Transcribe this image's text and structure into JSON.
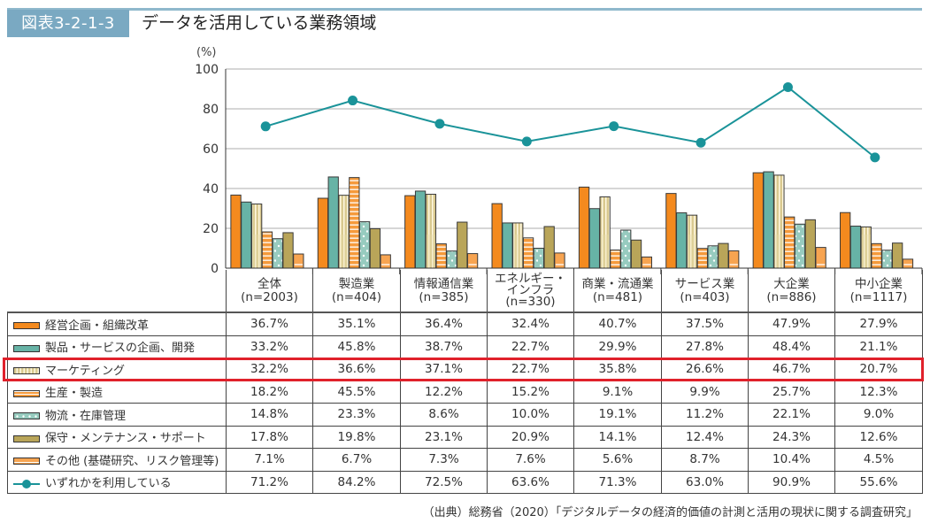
{
  "figure": {
    "number": "図表3-2-1-3",
    "title": "データを活用している業務領域",
    "unit": "(%)",
    "source": "（出典）総務省（2020）「デジタルデータの経済的価値の計測と活用の現状に関する調査研究」"
  },
  "colors": {
    "keiei": "#f48a1e",
    "seihin": "#67b3a6",
    "marketing": "#d9c98f",
    "seisan": "#f59a3b",
    "butsuryu": "#97cbbf",
    "hoshu": "#b9a559",
    "other": "#f7a451",
    "line": "#1a9399",
    "highlight": "#e0212b",
    "badge": "#7aa9c2"
  },
  "chart_data": {
    "type": "bar",
    "title": "データを活用している業務領域",
    "ylabel": "(%)",
    "xlabel": "",
    "ylim": [
      0,
      100
    ],
    "yticks": [
      0,
      20,
      40,
      60,
      80,
      100
    ],
    "grid": true,
    "categories": [
      {
        "name": "全体",
        "n": "(n=2003)"
      },
      {
        "name": "製造業",
        "n": "(n=404)"
      },
      {
        "name": "情報通信業",
        "n": "(n=385)"
      },
      {
        "name": "エネルギー・インフラ",
        "n": "(n=330)",
        "lines": [
          "エネルギー・",
          "インフラ"
        ]
      },
      {
        "name": "商業・流通業",
        "n": "(n=481)"
      },
      {
        "name": "サービス業",
        "n": "(n=403)"
      },
      {
        "name": "大企業",
        "n": "(n=886)"
      },
      {
        "name": "中小企業",
        "n": "(n=1117)"
      }
    ],
    "series": [
      {
        "key": "keiei",
        "name": "経営企画・組織改革",
        "type": "bar",
        "pattern": "solid",
        "values": [
          36.7,
          35.1,
          36.4,
          32.4,
          40.7,
          37.5,
          47.9,
          27.9
        ]
      },
      {
        "key": "seihin",
        "name": "製品・サービスの企画、開発",
        "type": "bar",
        "pattern": "solid",
        "values": [
          33.2,
          45.8,
          38.7,
          22.7,
          29.9,
          27.8,
          48.4,
          21.1
        ]
      },
      {
        "key": "marketing",
        "name": "マーケティング",
        "type": "bar",
        "pattern": "vertical-stripes",
        "values": [
          32.2,
          36.6,
          37.1,
          22.7,
          35.8,
          26.6,
          46.7,
          20.7
        ],
        "highlighted": true
      },
      {
        "key": "seisan",
        "name": "生産・製造",
        "type": "bar",
        "pattern": "horizontal-stripes",
        "values": [
          18.2,
          45.5,
          12.2,
          15.2,
          9.1,
          9.9,
          25.7,
          12.3
        ]
      },
      {
        "key": "butsuryu",
        "name": "物流・在庫管理",
        "type": "bar",
        "pattern": "dots",
        "values": [
          14.8,
          23.3,
          8.6,
          10.0,
          19.1,
          11.2,
          22.1,
          9.0
        ]
      },
      {
        "key": "hoshu",
        "name": "保守・メンテナンス・サポート",
        "type": "bar",
        "pattern": "solid",
        "values": [
          17.8,
          19.8,
          23.1,
          20.9,
          14.1,
          12.4,
          24.3,
          12.6
        ]
      },
      {
        "key": "other",
        "name": "その他 (基礎研究、リスク管理等)",
        "type": "bar",
        "pattern": "bottom-line",
        "values": [
          7.1,
          6.7,
          7.3,
          7.6,
          5.6,
          8.7,
          10.4,
          4.5
        ]
      },
      {
        "key": "line",
        "name": "いずれかを利用している",
        "type": "line",
        "pattern": "line-marker",
        "values": [
          71.2,
          84.2,
          72.5,
          63.6,
          71.3,
          63.0,
          90.9,
          55.6
        ]
      }
    ]
  },
  "table": {
    "rows": [
      {
        "label": "経営企画・組織改革",
        "cells": [
          "36.7%",
          "35.1%",
          "36.4%",
          "32.4%",
          "40.7%",
          "37.5%",
          "47.9%",
          "27.9%"
        ]
      },
      {
        "label": "製品・サービスの企画、開発",
        "cells": [
          "33.2%",
          "45.8%",
          "38.7%",
          "22.7%",
          "29.9%",
          "27.8%",
          "48.4%",
          "21.1%"
        ]
      },
      {
        "label": "マーケティング",
        "cells": [
          "32.2%",
          "36.6%",
          "37.1%",
          "22.7%",
          "35.8%",
          "26.6%",
          "46.7%",
          "20.7%"
        ]
      },
      {
        "label": "生産・製造",
        "cells": [
          "18.2%",
          "45.5%",
          "12.2%",
          "15.2%",
          "9.1%",
          "9.9%",
          "25.7%",
          "12.3%"
        ]
      },
      {
        "label": "物流・在庫管理",
        "cells": [
          "14.8%",
          "23.3%",
          "8.6%",
          "10.0%",
          "19.1%",
          "11.2%",
          "22.1%",
          "9.0%"
        ]
      },
      {
        "label": "保守・メンテナンス・サポート",
        "cells": [
          "17.8%",
          "19.8%",
          "23.1%",
          "20.9%",
          "14.1%",
          "12.4%",
          "24.3%",
          "12.6%"
        ]
      },
      {
        "label": "その他 (基礎研究、リスク管理等)",
        "cells": [
          "7.1%",
          "6.7%",
          "7.3%",
          "7.6%",
          "5.6%",
          "8.7%",
          "10.4%",
          "4.5%"
        ]
      },
      {
        "label": "いずれかを利用している",
        "cells": [
          "71.2%",
          "84.2%",
          "72.5%",
          "63.6%",
          "71.3%",
          "63.0%",
          "90.9%",
          "55.6%"
        ]
      }
    ]
  }
}
